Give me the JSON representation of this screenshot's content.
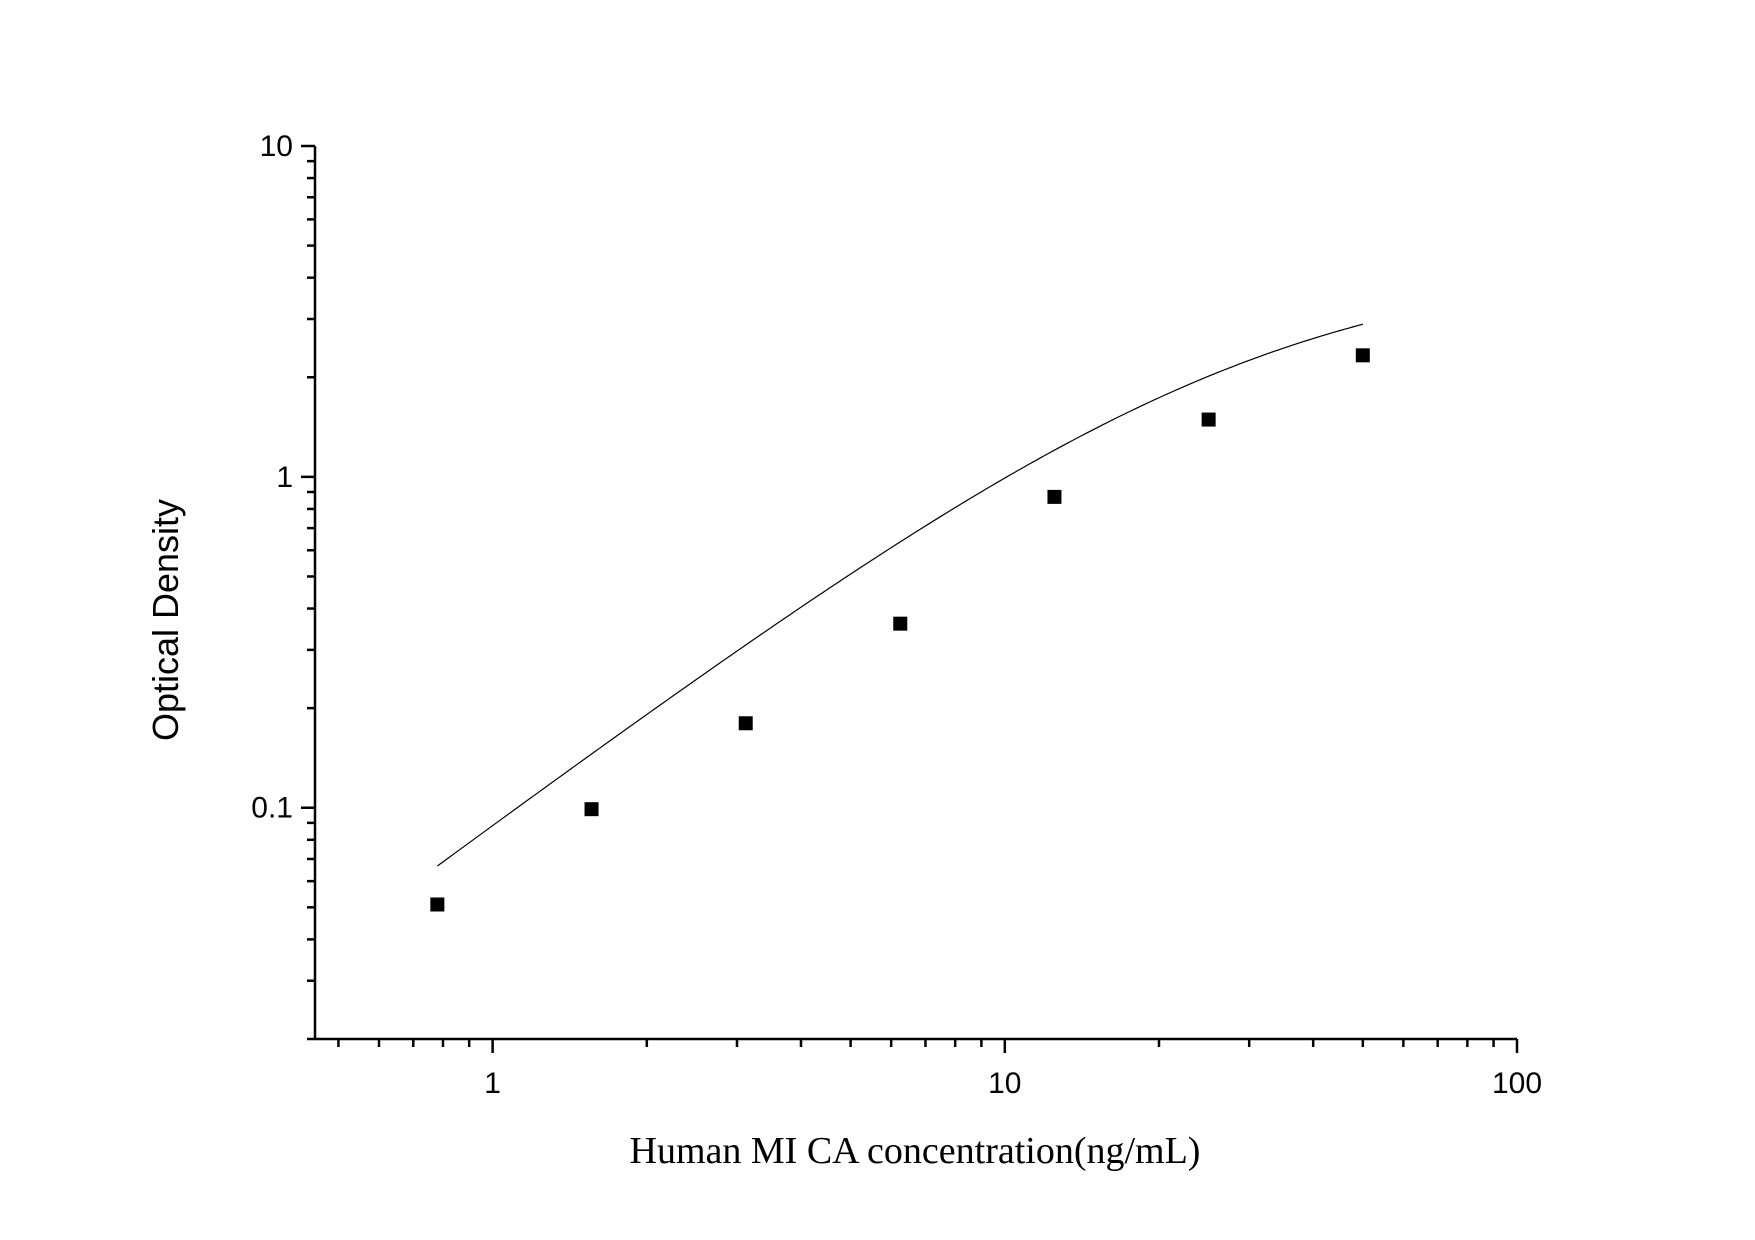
{
  "chart_data": {
    "type": "scatter",
    "xlabel": "Human MI   CA concentration(ng/mL)",
    "ylabel": "Optical Density",
    "x_scale": "log",
    "y_scale": "log",
    "xlim": [
      0.45,
      100
    ],
    "ylim": [
      0.02,
      10
    ],
    "x_ticks": [
      1,
      10,
      100
    ],
    "x_tick_labels": [
      "1",
      "10",
      "100"
    ],
    "y_ticks": [
      0.1,
      1,
      10
    ],
    "y_tick_labels": [
      "0.1",
      "1",
      "10"
    ],
    "grid": false,
    "marker_color": "#000000",
    "line_color": "#000000",
    "series": [
      {
        "marker": "square",
        "x": [
          0.78,
          1.56,
          3.12,
          6.25,
          12.5,
          25,
          50
        ],
        "y": [
          0.051,
          0.099,
          0.18,
          0.36,
          0.87,
          1.49,
          2.33
        ]
      }
    ],
    "fit_curve": {
      "model": "4PL",
      "a": 0.0,
      "b": 1.15,
      "c": 30,
      "d": 4.5,
      "x_range": [
        0.78,
        50
      ]
    }
  }
}
